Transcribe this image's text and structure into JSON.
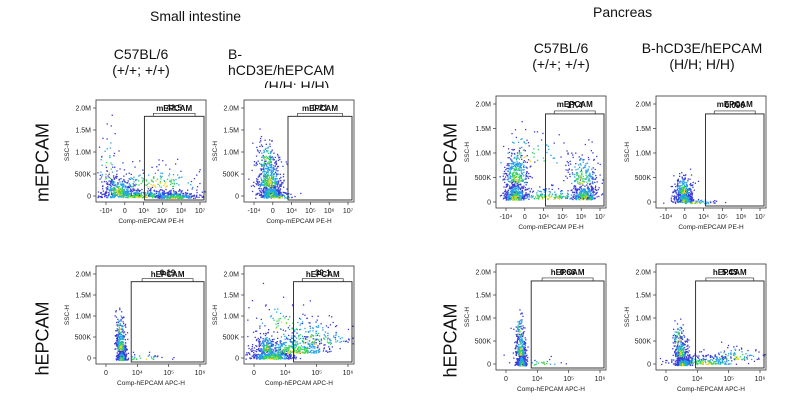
{
  "sections": {
    "left": "Small intestine",
    "right": "Pancreas"
  },
  "genotypes": {
    "si_wt": [
      "C57BL/6",
      "(+/+; +/+)"
    ],
    "si_hu": [
      "B-",
      "hCD3E/hEPCAM",
      "(H/H; H/H)"
    ],
    "pa_wt": [
      "C57BL/6",
      "(+/+; +/+)"
    ],
    "pa_hu": [
      "B-hCD3E/hEPCAM",
      "(H/H; H/H)"
    ]
  },
  "row_labels": [
    "mEPCAM",
    "hEPCAM"
  ],
  "colors": {
    "dot_low": "#3a3ad6",
    "dot_mid": "#22a0e8",
    "dot_high": "#33d45a",
    "dot_core": "#ffd21a",
    "gate": "#222222"
  },
  "chart_data": [
    {
      "type": "scatter",
      "tissue": "Small intestine",
      "title": "C57BL/6 (+/+; +/+)",
      "ylabel": "SSC-H",
      "xlabel": "Comp-mEPCAM PE-H",
      "gate": "mEPCAM",
      "gate_percent": "42.5",
      "yticks": [
        "0",
        "500K",
        "1.0M",
        "1.5M",
        "2.0M"
      ],
      "xticks": [
        "-10⁴",
        "0",
        "10⁴",
        "10⁵",
        "10⁶",
        "10⁷"
      ],
      "ylim": [
        0,
        2000000
      ],
      "pattern": "m-broad"
    },
    {
      "type": "scatter",
      "tissue": "Small intestine",
      "title": "B-hCD3E/hEPCAM (H/H; H/H)",
      "ylabel": "SSC-H",
      "xlabel": "Comp-mEPCAM PE-H",
      "gate": "mEPCAM",
      "gate_percent": "0.21",
      "yticks": [
        "0",
        "500K",
        "1.0M",
        "1.5M",
        "2.0M"
      ],
      "xticks": [
        "-10⁴",
        "0",
        "10⁴",
        "10⁵",
        "10⁶",
        "10⁷"
      ],
      "ylim": [
        0,
        2000000
      ],
      "pattern": "neg-tall"
    },
    {
      "type": "scatter",
      "tissue": "Small intestine",
      "title": "C57BL/6 (+/+; +/+)",
      "ylabel": "SSC-H",
      "xlabel": "Comp-hEPCAM APC-H",
      "gate": "hEPCAM",
      "gate_percent": "0.19",
      "yticks": [
        "0",
        "500K",
        "1.0M",
        "1.5M",
        "2.0M"
      ],
      "xticks": [
        "0",
        "10⁴",
        "10⁵",
        "10⁶"
      ],
      "ylim": [
        0,
        2000000
      ],
      "pattern": "neg-narrow"
    },
    {
      "type": "scatter",
      "tissue": "Small intestine",
      "title": "B-hCD3E/hEPCAM (H/H; H/H)",
      "ylabel": "SSC-H",
      "xlabel": "Comp-hEPCAM APC-H",
      "gate": "hEPCAM",
      "gate_percent": "39.1",
      "yticks": [
        "0",
        "500K",
        "1.0M",
        "1.5M",
        "2.0M"
      ],
      "xticks": [
        "0",
        "10⁴",
        "10⁵",
        "10⁶"
      ],
      "ylim": [
        0,
        2000000
      ],
      "pattern": "h-broad"
    },
    {
      "type": "scatter",
      "tissue": "Pancreas",
      "title": "C57BL/6 (+/+; +/+)",
      "ylabel": "SSC-H",
      "xlabel": "Comp-mEPCAM PE-H",
      "gate": "mEPCAM",
      "gate_percent": "17.4",
      "yticks": [
        "0",
        "500K",
        "1.0M",
        "1.5M",
        "2.0M"
      ],
      "xticks": [
        "-10⁴",
        "0",
        "10⁴",
        "10⁵",
        "10⁶",
        "10⁷"
      ],
      "ylim": [
        0,
        2000000
      ],
      "pattern": "m-bimodal"
    },
    {
      "type": "scatter",
      "tissue": "Pancreas",
      "title": "B-hCD3E/hEPCAM (H/H; H/H)",
      "ylabel": "SSC-H",
      "xlabel": "Comp-mEPCAM PE-H",
      "gate": "mEPCAM",
      "gate_percent": "0.096",
      "yticks": [
        "0",
        "500K",
        "1.0M",
        "1.5M",
        "2.0M"
      ],
      "xticks": [
        "-10⁴",
        "0",
        "10⁴",
        "10⁵",
        "10⁶",
        "10⁷"
      ],
      "ylim": [
        0,
        2000000
      ],
      "pattern": "neg-small"
    },
    {
      "type": "scatter",
      "tissue": "Pancreas",
      "title": "C57BL/6 (+/+; +/+)",
      "ylabel": "SSC-H",
      "xlabel": "Comp-hEPCAM APC-H",
      "gate": "hEPCAM",
      "gate_percent": "0.66",
      "yticks": [
        "0",
        "500K",
        "1.0M",
        "1.5M",
        "2.0M"
      ],
      "xticks": [
        "0",
        "10⁴",
        "10⁵",
        "10⁶"
      ],
      "ylim": [
        0,
        2000000
      ],
      "pattern": "neg-narrow"
    },
    {
      "type": "scatter",
      "tissue": "Pancreas",
      "title": "B-hCD3E/hEPCAM (H/H; H/H)",
      "ylabel": "SSC-H",
      "xlabel": "Comp-hEPCAM APC-H",
      "gate": "hEPCAM",
      "gate_percent": "5.45",
      "yticks": [
        "0",
        "500K",
        "1.0M",
        "1.5M",
        "2.0M"
      ],
      "xticks": [
        "0",
        "10⁴",
        "10⁵",
        "10⁶"
      ],
      "ylim": [
        0,
        2000000
      ],
      "pattern": "h-pos-small"
    }
  ]
}
